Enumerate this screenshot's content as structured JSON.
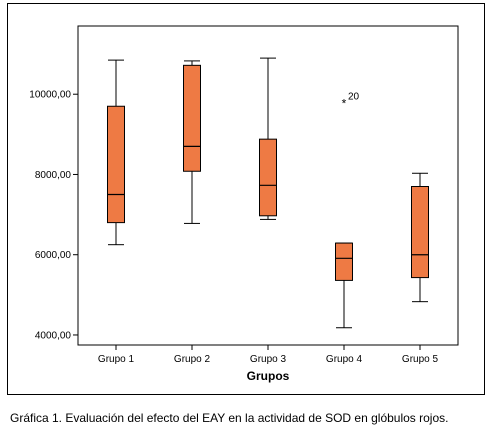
{
  "chart_data": {
    "type": "boxplot",
    "title": "",
    "xlabel": "Grupos",
    "ylabel": "",
    "categories": [
      "Grupo 1",
      "Grupo 2",
      "Grupo 3",
      "Grupo 4",
      "Grupo 5"
    ],
    "ylim": [
      3750,
      11700
    ],
    "yticks": [
      4000,
      6000,
      8000,
      10000
    ],
    "ytick_labels": [
      "4000,00",
      "6000,00",
      "8000,00",
      "10000,00"
    ],
    "box_color": "#ee7a44",
    "boxes": [
      {
        "category": "Grupo 1",
        "min": 6250,
        "q1": 6800,
        "median": 7500,
        "q3": 9700,
        "max": 10850
      },
      {
        "category": "Grupo 2",
        "min": 6780,
        "q1": 8080,
        "median": 8700,
        "q3": 10720,
        "max": 10830
      },
      {
        "category": "Grupo 3",
        "min": 6880,
        "q1": 6970,
        "median": 7730,
        "q3": 8880,
        "max": 10900
      },
      {
        "category": "Grupo 4",
        "min": 4180,
        "q1": 5360,
        "median": 5910,
        "q3": 6290,
        "max": 6290
      },
      {
        "category": "Grupo 5",
        "min": 4830,
        "q1": 5430,
        "median": 6000,
        "q3": 7700,
        "max": 8030
      }
    ],
    "outliers": [
      {
        "category": "Grupo 4",
        "value": 9790,
        "marker": "*",
        "label": "20"
      }
    ]
  },
  "caption": "Gráfica 1. Evaluación del efecto del EAY en la actividad de SOD en glóbulos  rojos."
}
